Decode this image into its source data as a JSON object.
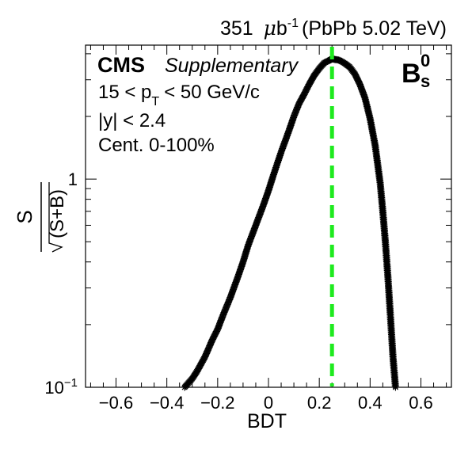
{
  "header": {
    "lumi": "351",
    "lumi_unit_mu": "μ",
    "lumi_unit_b": "b",
    "lumi_exp": "-1",
    "lumi_tail": "(PbPb 5.02 TeV)"
  },
  "labels": {
    "experiment": "CMS",
    "status": "Supplementary",
    "pt_prefix": "15 < p",
    "pt_sub": "T",
    "pt_suffix": "< 50 GeV/c",
    "rapidity": "|y| < 2.4",
    "centrality": "Cent. 0-100%",
    "particle": "B",
    "particle_sup": "0",
    "particle_sub": "s"
  },
  "colors": {
    "points": "#000000",
    "cut_line": "#1eea1e"
  },
  "chart_data": {
    "type": "scatter",
    "title": "",
    "xlabel": "BDT",
    "ylabel": "S/√(S+B)",
    "ylabel_num": "S",
    "ylabel_den": "(S+B)",
    "xlim": [
      -0.72,
      0.72
    ],
    "ylim": [
      0.1,
      4.4
    ],
    "yscale": "log",
    "grid": false,
    "xticks": [
      -0.6,
      -0.4,
      -0.2,
      0,
      0.2,
      0.4,
      0.6
    ],
    "xtick_labels": [
      "−0.6",
      "−0.4",
      "−0.2",
      "0",
      "0.2",
      "0.4",
      "0.6"
    ],
    "yticks": [
      0.1,
      1
    ],
    "ytick_labels": [
      {
        "base": "10",
        "exp": "−1"
      },
      {
        "base": "1",
        "exp": ""
      }
    ],
    "marker": "star",
    "x": [
      -0.33,
      -0.3,
      -0.28,
      -0.25,
      -0.22,
      -0.2,
      -0.18,
      -0.15,
      -0.12,
      -0.1,
      -0.08,
      -0.05,
      -0.02,
      0.0,
      0.02,
      0.05,
      0.08,
      0.1,
      0.12,
      0.14,
      0.16,
      0.18,
      0.2,
      0.22,
      0.24,
      0.25,
      0.26,
      0.28,
      0.3,
      0.32,
      0.34,
      0.36,
      0.38,
      0.4,
      0.42,
      0.44,
      0.45,
      0.46,
      0.47,
      0.48,
      0.49,
      0.5
    ],
    "y": [
      0.1,
      0.11,
      0.12,
      0.14,
      0.17,
      0.19,
      0.22,
      0.27,
      0.34,
      0.4,
      0.48,
      0.6,
      0.75,
      0.88,
      1.05,
      1.35,
      1.7,
      2.0,
      2.3,
      2.55,
      2.85,
      3.15,
      3.4,
      3.62,
      3.72,
      3.78,
      3.76,
      3.72,
      3.6,
      3.45,
      3.2,
      2.85,
      2.45,
      1.95,
      1.45,
      0.95,
      0.7,
      0.5,
      0.34,
      0.22,
      0.14,
      0.1
    ],
    "cut_x": 0.25
  }
}
